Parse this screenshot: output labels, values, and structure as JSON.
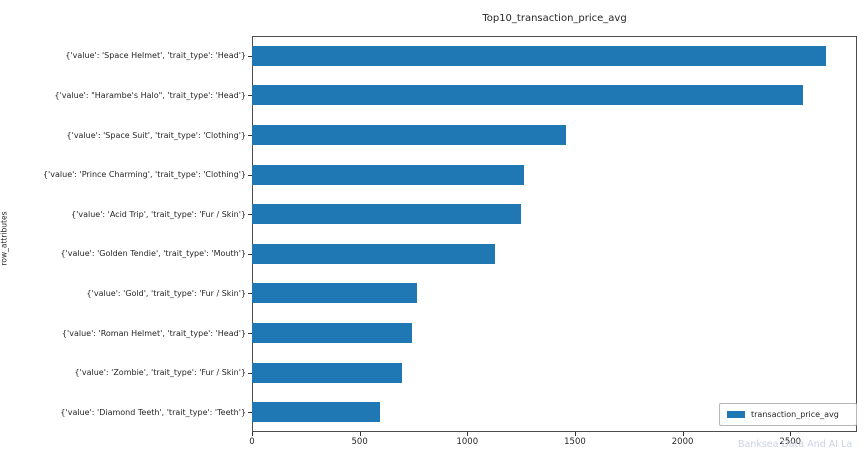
{
  "title": "Top10_transaction_price_avg",
  "y_axis_title": "row_attributes",
  "watermark": "Banksea Data And AI La",
  "legend": {
    "label": "transaction_price_avg",
    "swatch_color": "#1f77b4",
    "position": "lower right"
  },
  "colors": {
    "bar": "#1f77b4",
    "spine": "#4d4d4d",
    "text": "#262626",
    "watermark": "#c9d2e6"
  },
  "chart_data": {
    "type": "bar",
    "orientation": "horizontal",
    "title": "Top10_transaction_price_avg",
    "xlabel": "",
    "ylabel": "row_attributes",
    "categories": [
      "{'value': 'Space Helmet', 'trait_type': 'Head'}",
      "{'value': \"Harambe's Halo\", 'trait_type': 'Head'}",
      "{'value': 'Space Suit', 'trait_type': 'Clothing'}",
      "{'value': 'Prince Charming', 'trait_type': 'Clothing'}",
      "{'value': 'Acid Trip', 'trait_type': 'Fur / Skin'}",
      "{'value': 'Golden Tendie', 'trait_type': 'Mouth'}",
      "{'value': 'Gold', 'trait_type': 'Fur / Skin'}",
      "{'value': 'Roman Helmet', 'trait_type': 'Head'}",
      "{'value': 'Zombie', 'trait_type': 'Fur / Skin'}",
      "{'value': 'Diamond Teeth', 'trait_type': 'Teeth'}"
    ],
    "series": [
      {
        "name": "transaction_price_avg",
        "values": [
          2665,
          2560,
          1460,
          1265,
          1250,
          1130,
          765,
          745,
          695,
          595
        ]
      }
    ],
    "xlim": [
      0,
      2810
    ],
    "xticks": [
      0,
      500,
      1000,
      1500,
      2000,
      2500
    ],
    "grid": false,
    "legend_position": "lower right"
  }
}
